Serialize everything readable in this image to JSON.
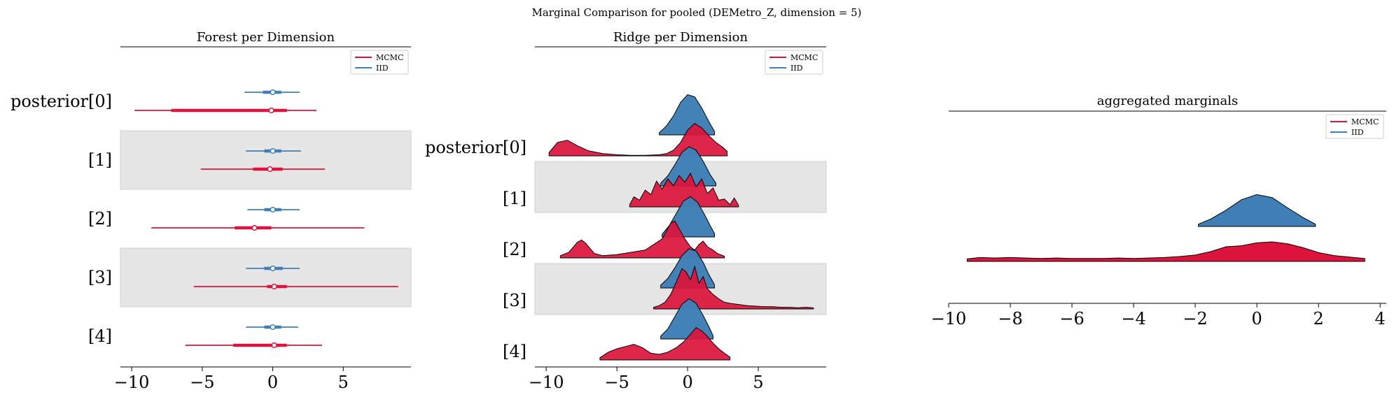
{
  "suptitle": "Marginal Comparison for pooled (DEMetro_Z, dimension = 5)",
  "colors": {
    "mcmc": "#dc143c",
    "iid": "#3f7fb5",
    "band": "#e5e5e5",
    "outline": "#000000"
  },
  "legend": [
    "MCMC",
    "IID"
  ],
  "chart_data": [
    {
      "type": "forest",
      "title": "Forest per Dimension",
      "xlim": [
        -10.8,
        9.8
      ],
      "xticks": [
        -10,
        -5,
        0,
        5
      ],
      "row_labels": [
        "posterior[0]",
        "[1]",
        "[2]",
        "[3]",
        "[4]"
      ],
      "legend_placement": "top-right",
      "series": [
        {
          "name": "MCMC",
          "rows": [
            {
              "hdi94": [
                -9.8,
                3.1
              ],
              "iqr": [
                -7.2,
                1.0
              ],
              "median": -0.1
            },
            {
              "hdi94": [
                -5.1,
                3.7
              ],
              "iqr": [
                -1.4,
                0.7
              ],
              "median": -0.2
            },
            {
              "hdi94": [
                -8.6,
                6.5
              ],
              "iqr": [
                -2.7,
                -0.1
              ],
              "median": -1.3
            },
            {
              "hdi94": [
                -5.6,
                8.9
              ],
              "iqr": [
                -0.4,
                1.0
              ],
              "median": 0.1
            },
            {
              "hdi94": [
                -6.2,
                3.5
              ],
              "iqr": [
                -2.8,
                1.0
              ],
              "median": 0.1
            }
          ]
        },
        {
          "name": "IID",
          "rows": [
            {
              "hdi94": [
                -2.0,
                1.9
              ],
              "iqr": [
                -0.7,
                0.6
              ],
              "median": 0.0
            },
            {
              "hdi94": [
                -1.9,
                2.0
              ],
              "iqr": [
                -0.6,
                0.6
              ],
              "median": 0.0
            },
            {
              "hdi94": [
                -1.8,
                1.9
              ],
              "iqr": [
                -0.6,
                0.6
              ],
              "median": 0.0
            },
            {
              "hdi94": [
                -1.9,
                1.9
              ],
              "iqr": [
                -0.6,
                0.7
              ],
              "median": 0.0
            },
            {
              "hdi94": [
                -1.9,
                1.8
              ],
              "iqr": [
                -0.6,
                0.6
              ],
              "median": 0.0
            }
          ]
        }
      ]
    },
    {
      "type": "ridge",
      "title": "Ridge per Dimension",
      "xlim": [
        -10.8,
        9.8
      ],
      "xticks": [
        -10,
        -5,
        0,
        5
      ],
      "row_labels": [
        "posterior[0]",
        "[1]",
        "[2]",
        "[3]",
        "[4]"
      ],
      "legend_placement": "top-right",
      "series": [
        {
          "name": "IID",
          "rows": [
            {
              "x": [
                -2.0,
                -1.5,
                -1.0,
                -0.5,
                0.0,
                0.5,
                1.0,
                1.5,
                1.9
              ],
              "y": [
                0.04,
                0.16,
                0.34,
                0.58,
                0.72,
                0.68,
                0.48,
                0.24,
                0.06
              ]
            },
            {
              "x": [
                -1.9,
                -1.4,
                -0.9,
                -0.4,
                0.1,
                0.6,
                1.1,
                1.6,
                2.0
              ],
              "y": [
                0.05,
                0.18,
                0.38,
                0.6,
                0.7,
                0.64,
                0.44,
                0.2,
                0.05
              ]
            },
            {
              "x": [
                -1.8,
                -1.3,
                -0.8,
                -0.3,
                0.2,
                0.7,
                1.2,
                1.6,
                1.9
              ],
              "y": [
                0.05,
                0.2,
                0.42,
                0.64,
                0.72,
                0.62,
                0.4,
                0.2,
                0.06
              ]
            },
            {
              "x": [
                -1.9,
                -1.4,
                -0.9,
                -0.4,
                0.1,
                0.6,
                1.1,
                1.5,
                1.9
              ],
              "y": [
                0.05,
                0.17,
                0.36,
                0.58,
                0.7,
                0.66,
                0.46,
                0.24,
                0.06
              ]
            },
            {
              "x": [
                -1.9,
                -1.4,
                -0.9,
                -0.4,
                0.1,
                0.6,
                1.1,
                1.5,
                1.8
              ],
              "y": [
                0.05,
                0.18,
                0.4,
                0.62,
                0.72,
                0.64,
                0.42,
                0.22,
                0.06
              ]
            }
          ]
        },
        {
          "name": "MCMC",
          "rows": [
            {
              "x": [
                -9.8,
                -9.2,
                -8.5,
                -7.8,
                -7.0,
                -6.0,
                -5.0,
                -4.0,
                -3.0,
                -2.0,
                -1.5,
                -1.0,
                -0.5,
                0.0,
                0.5,
                1.0,
                1.5,
                2.0,
                2.5,
                2.8
              ],
              "y": [
                0.06,
                0.24,
                0.28,
                0.18,
                0.09,
                0.04,
                0.02,
                0.01,
                0.01,
                0.02,
                0.04,
                0.1,
                0.24,
                0.46,
                0.58,
                0.5,
                0.36,
                0.24,
                0.15,
                0.08
              ]
            },
            {
              "x": [
                -4.1,
                -3.8,
                -3.4,
                -3.0,
                -2.6,
                -2.2,
                -1.8,
                -1.4,
                -1.0,
                -0.6,
                -0.2,
                0.2,
                0.6,
                1.0,
                1.4,
                1.8,
                2.2,
                2.6,
                3.0,
                3.3,
                3.6
              ],
              "y": [
                0.04,
                0.18,
                0.12,
                0.3,
                0.22,
                0.46,
                0.32,
                0.5,
                0.38,
                0.56,
                0.44,
                0.6,
                0.36,
                0.5,
                0.24,
                0.34,
                0.12,
                0.14,
                0.04,
                0.16,
                0.03
              ]
            },
            {
              "x": [
                -9.0,
                -8.4,
                -7.8,
                -7.5,
                -7.2,
                -6.6,
                -6.0,
                -5.0,
                -4.0,
                -3.0,
                -2.4,
                -1.8,
                -1.5,
                -1.2,
                -0.9,
                -0.6,
                -0.2,
                0.2,
                0.5,
                0.8,
                1.1,
                1.4,
                1.8,
                2.1,
                2.6
              ],
              "y": [
                0.04,
                0.1,
                0.28,
                0.32,
                0.26,
                0.08,
                0.04,
                0.06,
                0.1,
                0.14,
                0.24,
                0.34,
                0.48,
                0.62,
                0.66,
                0.52,
                0.34,
                0.2,
                0.14,
                0.24,
                0.3,
                0.2,
                0.14,
                0.08,
                0.03
              ]
            },
            {
              "x": [
                -2.4,
                -2.0,
                -1.6,
                -1.2,
                -0.8,
                -0.4,
                -0.1,
                0.2,
                0.5,
                0.8,
                1.1,
                1.4,
                1.8,
                2.2,
                2.6,
                3.0,
                3.6,
                4.2,
                4.8,
                5.4,
                6.0,
                6.6,
                7.2,
                7.8,
                8.4,
                8.9
              ],
              "y": [
                0.03,
                0.06,
                0.12,
                0.26,
                0.48,
                0.72,
                0.66,
                0.52,
                0.76,
                0.46,
                0.58,
                0.36,
                0.26,
                0.18,
                0.12,
                0.1,
                0.08,
                0.06,
                0.05,
                0.04,
                0.04,
                0.03,
                0.03,
                0.02,
                0.03,
                0.02
              ]
            },
            {
              "x": [
                -6.2,
                -5.6,
                -5.0,
                -4.4,
                -3.8,
                -3.2,
                -2.6,
                -2.0,
                -1.4,
                -0.8,
                -0.3,
                0.2,
                0.6,
                1.0,
                1.4,
                1.8,
                2.2,
                2.6,
                3.0
              ],
              "y": [
                0.04,
                0.14,
                0.2,
                0.24,
                0.28,
                0.22,
                0.12,
                0.1,
                0.14,
                0.22,
                0.32,
                0.46,
                0.58,
                0.52,
                0.42,
                0.3,
                0.2,
                0.12,
                0.05
              ]
            }
          ]
        }
      ]
    },
    {
      "type": "ridge",
      "title": "aggregated marginals",
      "xlim": [
        -10.0,
        4.2
      ],
      "xticks": [
        -10,
        -8,
        -6,
        -4,
        -2,
        0,
        2,
        4
      ],
      "legend_placement": "top-right",
      "series": [
        {
          "name": "IID",
          "x": [
            -1.9,
            -1.5,
            -1.0,
            -0.5,
            0.0,
            0.5,
            1.0,
            1.5,
            1.9
          ],
          "y": [
            0.06,
            0.2,
            0.44,
            0.72,
            0.86,
            0.78,
            0.5,
            0.24,
            0.06
          ]
        },
        {
          "name": "MCMC",
          "x": [
            -9.4,
            -9.0,
            -8.5,
            -8.0,
            -7.5,
            -7.0,
            -6.5,
            -6.0,
            -5.5,
            -5.0,
            -4.5,
            -4.0,
            -3.5,
            -3.0,
            -2.5,
            -2.0,
            -1.5,
            -1.0,
            -0.5,
            0.0,
            0.5,
            1.0,
            1.5,
            2.0,
            2.5,
            3.0,
            3.5
          ],
          "y": [
            0.05,
            0.08,
            0.07,
            0.08,
            0.07,
            0.06,
            0.07,
            0.06,
            0.06,
            0.06,
            0.07,
            0.06,
            0.07,
            0.08,
            0.1,
            0.13,
            0.2,
            0.3,
            0.32,
            0.38,
            0.4,
            0.36,
            0.28,
            0.18,
            0.12,
            0.09,
            0.06
          ]
        }
      ]
    }
  ]
}
